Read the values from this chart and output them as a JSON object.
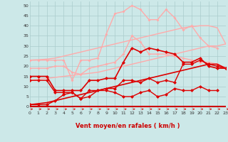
{
  "x": [
    0,
    1,
    2,
    3,
    4,
    5,
    6,
    7,
    8,
    9,
    10,
    11,
    12,
    13,
    14,
    15,
    16,
    17,
    18,
    19,
    20,
    21,
    22,
    23
  ],
  "bg_color": "#cce8e8",
  "grid_color": "#aacccc",
  "xlabel": "Vent moyen/en rafales ( km/h )",
  "xlabel_color": "#cc0000",
  "ylim": [
    -2,
    52
  ],
  "xlim": [
    0,
    23
  ],
  "yticks": [
    0,
    5,
    10,
    15,
    20,
    25,
    30,
    35,
    40,
    45,
    50
  ],
  "lines": [
    {
      "y": [
        23,
        23.2,
        23.5,
        24,
        25,
        26,
        27,
        28,
        29,
        30,
        31,
        32,
        33,
        34,
        35,
        36,
        37,
        38,
        39,
        39.5,
        40,
        40,
        39,
        31
      ],
      "color": "#ffaaaa",
      "lw": 1.0,
      "marker": null,
      "markersize": 0
    },
    {
      "y": [
        13,
        13.5,
        14,
        14.5,
        15,
        15.5,
        16,
        16.5,
        17,
        18,
        19,
        20,
        21,
        22,
        23,
        24,
        25,
        26,
        27,
        28,
        29,
        30,
        30,
        31
      ],
      "color": "#ffaaaa",
      "lw": 1.0,
      "marker": null,
      "markersize": 0
    },
    {
      "y": [
        19,
        19,
        19,
        20,
        20,
        17,
        16,
        19,
        20,
        21,
        22,
        26,
        35,
        32,
        26,
        26,
        26,
        25,
        24,
        23,
        22,
        22,
        21,
        19
      ],
      "color": "#ffaaaa",
      "lw": 1.0,
      "marker": "D",
      "markersize": 2.0
    },
    {
      "y": [
        23,
        23,
        23,
        23,
        23,
        13,
        23,
        23,
        24,
        36,
        46,
        47,
        50,
        48,
        43,
        43,
        48,
        44,
        38,
        40,
        34,
        30,
        29,
        null
      ],
      "color": "#ffaaaa",
      "lw": 1.0,
      "marker": "D",
      "markersize": 2.0
    },
    {
      "y": [
        15,
        15,
        15,
        8,
        8,
        8,
        8,
        13,
        13,
        14,
        14,
        22,
        29,
        27,
        29,
        28,
        27,
        26,
        22,
        22,
        24,
        20,
        19,
        19
      ],
      "color": "#dd0000",
      "lw": 1.2,
      "marker": "D",
      "markersize": 2.5
    },
    {
      "y": [
        13,
        13,
        13,
        7,
        7,
        7,
        4,
        8,
        8,
        9,
        9,
        13,
        13,
        12,
        14,
        12,
        13,
        12,
        21,
        21,
        23,
        21,
        20,
        19
      ],
      "color": "#dd0000",
      "lw": 1.0,
      "marker": "D",
      "markersize": 2.5
    },
    {
      "y": [
        1,
        1,
        1,
        3,
        6,
        7,
        4,
        5,
        8,
        8,
        7,
        5,
        5,
        7,
        8,
        5,
        6,
        9,
        8,
        8,
        10,
        8,
        8,
        null
      ],
      "color": "#dd0000",
      "lw": 1.0,
      "marker": "D",
      "markersize": 2.5
    },
    {
      "y": [
        1,
        1.5,
        2,
        3,
        4,
        5,
        6,
        7,
        8,
        9,
        10,
        11,
        12,
        13,
        14,
        15,
        16,
        17,
        18,
        19,
        20,
        21,
        21,
        19
      ],
      "color": "#dd0000",
      "lw": 1.2,
      "marker": null,
      "markersize": 0
    }
  ],
  "arrow_color": "#cc0000"
}
